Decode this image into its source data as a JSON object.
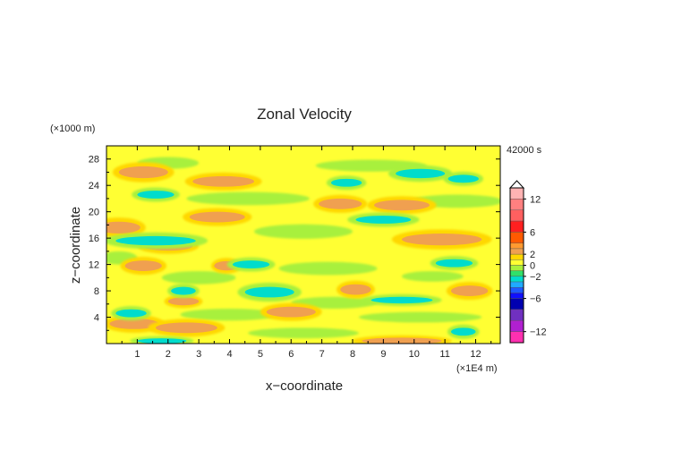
{
  "chart_data": {
    "type": "heatmap",
    "title": "Zonal Velocity",
    "xlabel": "x−coordinate",
    "ylabel": "z−coordinate",
    "x_unit": "(×1E4 m)",
    "y_unit": "(×1000 m)",
    "time_label": "42000 s",
    "xlim": [
      0,
      12.8
    ],
    "ylim": [
      0,
      30
    ],
    "x_ticks": [
      "1",
      "2",
      "3",
      "4",
      "5",
      "6",
      "7",
      "8",
      "9",
      "10",
      "11",
      "12"
    ],
    "y_ticks": [
      "4",
      "8",
      "12",
      "16",
      "20",
      "24",
      "28"
    ],
    "colorbar": {
      "tick_labels": [
        "12",
        "6",
        "2",
        "0",
        "−2",
        "−6",
        "−12"
      ],
      "tick_values": [
        12,
        6,
        2,
        0,
        -2,
        -6,
        -12
      ],
      "overflow_triangle": "top",
      "levels": [
        {
          "min": 12,
          "max": 14,
          "color": "#ffb3b3"
        },
        {
          "min": 10,
          "max": 12,
          "color": "#ff8080"
        },
        {
          "min": 8,
          "max": 10,
          "color": "#ff6060"
        },
        {
          "min": 6,
          "max": 8,
          "color": "#ff2020"
        },
        {
          "min": 4,
          "max": 6,
          "color": "#ff5a00"
        },
        {
          "min": 3,
          "max": 4,
          "color": "#ff9a30"
        },
        {
          "min": 2,
          "max": 3,
          "color": "#f0a050"
        },
        {
          "min": 1,
          "max": 2,
          "color": "#ffd700"
        },
        {
          "min": 0,
          "max": 1,
          "color": "#ffff33"
        },
        {
          "min": -1,
          "max": 0,
          "color": "#a8f03c"
        },
        {
          "min": -2,
          "max": -1,
          "color": "#30e06a"
        },
        {
          "min": -3,
          "max": -2,
          "color": "#00dccc"
        },
        {
          "min": -4,
          "max": -3,
          "color": "#1faaff"
        },
        {
          "min": -5,
          "max": -4,
          "color": "#1e5aff"
        },
        {
          "min": -6,
          "max": -5,
          "color": "#1010ff"
        },
        {
          "min": -8,
          "max": -6,
          "color": "#0000b0"
        },
        {
          "min": -10,
          "max": -8,
          "color": "#7030c0"
        },
        {
          "min": -12,
          "max": -10,
          "color": "#b020d0"
        },
        {
          "min": -14,
          "max": -12,
          "color": "#ff30b0"
        }
      ]
    },
    "background_level": {
      "value": 0.5,
      "color": "#ffff33"
    },
    "features": [
      {
        "kind": "positive",
        "x": 1.2,
        "z": 26.0,
        "hw": 0.8,
        "hh": 0.9,
        "u": 2.5
      },
      {
        "kind": "positive",
        "x": 3.8,
        "z": 24.6,
        "hw": 1.0,
        "hh": 0.8,
        "u": 2.5
      },
      {
        "kind": "positive",
        "x": 7.6,
        "z": 21.2,
        "hw": 0.7,
        "hh": 0.8,
        "u": 2.5
      },
      {
        "kind": "positive",
        "x": 9.6,
        "z": 21.0,
        "hw": 0.9,
        "hh": 0.8,
        "u": 2.5
      },
      {
        "kind": "positive",
        "x": 3.6,
        "z": 19.2,
        "hw": 0.9,
        "hh": 0.8,
        "u": 2.5
      },
      {
        "kind": "positive",
        "x": 0.4,
        "z": 17.6,
        "hw": 0.7,
        "hh": 0.9,
        "u": 2.5
      },
      {
        "kind": "positive",
        "x": 10.9,
        "z": 15.8,
        "hw": 1.3,
        "hh": 0.9,
        "u": 2.5
      },
      {
        "kind": "positive",
        "x": 2.0,
        "z": 14.8,
        "hw": 0.8,
        "hh": 0.7,
        "u": 2.5
      },
      {
        "kind": "positive",
        "x": 1.2,
        "z": 11.8,
        "hw": 0.6,
        "hh": 0.8,
        "u": 2.5
      },
      {
        "kind": "positive",
        "x": 3.9,
        "z": 11.8,
        "hw": 0.4,
        "hh": 0.7,
        "u": 2.5
      },
      {
        "kind": "positive",
        "x": 8.1,
        "z": 8.2,
        "hw": 0.5,
        "hh": 0.8,
        "u": 2.5
      },
      {
        "kind": "positive",
        "x": 11.8,
        "z": 8.0,
        "hw": 0.6,
        "hh": 0.8,
        "u": 2.5
      },
      {
        "kind": "positive",
        "x": 2.5,
        "z": 6.4,
        "hw": 0.5,
        "hh": 0.6,
        "u": 2.5
      },
      {
        "kind": "positive",
        "x": 6.0,
        "z": 4.8,
        "hw": 0.8,
        "hh": 0.8,
        "u": 2.5
      },
      {
        "kind": "positive",
        "x": 0.9,
        "z": 3.0,
        "hw": 0.8,
        "hh": 0.8,
        "u": 2.5
      },
      {
        "kind": "positive",
        "x": 2.6,
        "z": 2.4,
        "hw": 1.0,
        "hh": 0.8,
        "u": 2.5
      },
      {
        "kind": "positive",
        "x": 9.6,
        "z": 0.4,
        "hw": 1.3,
        "hh": 0.5,
        "u": 2.5
      },
      {
        "kind": "negative",
        "x": 10.2,
        "z": 25.8,
        "hw": 0.8,
        "hh": 0.7,
        "u": -2.5
      },
      {
        "kind": "negative",
        "x": 11.6,
        "z": 25.0,
        "hw": 0.5,
        "hh": 0.6,
        "u": -2.5
      },
      {
        "kind": "negative",
        "x": 7.8,
        "z": 24.4,
        "hw": 0.5,
        "hh": 0.6,
        "u": -3.0
      },
      {
        "kind": "negative",
        "x": 1.6,
        "z": 22.6,
        "hw": 0.6,
        "hh": 0.6,
        "u": -2.5
      },
      {
        "kind": "negative",
        "x": 9.0,
        "z": 18.8,
        "hw": 0.9,
        "hh": 0.6,
        "u": -3.0
      },
      {
        "kind": "negative",
        "x": 1.6,
        "z": 15.6,
        "hw": 1.3,
        "hh": 0.7,
        "u": -2.5
      },
      {
        "kind": "negative",
        "x": 4.7,
        "z": 12.0,
        "hw": 0.6,
        "hh": 0.6,
        "u": -2.5
      },
      {
        "kind": "negative",
        "x": 11.3,
        "z": 12.2,
        "hw": 0.6,
        "hh": 0.6,
        "u": -2.5
      },
      {
        "kind": "negative",
        "x": 2.5,
        "z": 8.0,
        "hw": 0.4,
        "hh": 0.6,
        "u": -3.0
      },
      {
        "kind": "negative",
        "x": 5.3,
        "z": 7.8,
        "hw": 0.8,
        "hh": 0.8,
        "u": -2.5
      },
      {
        "kind": "negative",
        "x": 9.6,
        "z": 6.6,
        "hw": 1.0,
        "hh": 0.5,
        "u": -2.5
      },
      {
        "kind": "negative",
        "x": 0.8,
        "z": 4.6,
        "hw": 0.5,
        "hh": 0.6,
        "u": -2.5
      },
      {
        "kind": "negative",
        "x": 11.6,
        "z": 1.8,
        "hw": 0.4,
        "hh": 0.6,
        "u": -2.5
      },
      {
        "kind": "negative",
        "x": 1.8,
        "z": 0.4,
        "hw": 0.8,
        "hh": 0.4,
        "u": -2.5
      },
      {
        "kind": "weak_negative",
        "x": 2.0,
        "z": 27.4,
        "hw": 1.0,
        "hh": 0.9,
        "u": -0.5
      },
      {
        "kind": "weak_negative",
        "x": 8.6,
        "z": 27.0,
        "hw": 1.8,
        "hh": 0.9,
        "u": -0.5
      },
      {
        "kind": "weak_negative",
        "x": 4.6,
        "z": 22.0,
        "hw": 2.0,
        "hh": 1.0,
        "u": -0.5
      },
      {
        "kind": "weak_negative",
        "x": 11.4,
        "z": 21.6,
        "hw": 1.5,
        "hh": 1.0,
        "u": -0.5
      },
      {
        "kind": "weak_negative",
        "x": 6.4,
        "z": 17.0,
        "hw": 1.6,
        "hh": 1.1,
        "u": -0.5
      },
      {
        "kind": "weak_negative",
        "x": 0.4,
        "z": 13.0,
        "hw": 0.6,
        "hh": 1.0,
        "u": -0.5
      },
      {
        "kind": "weak_negative",
        "x": 7.2,
        "z": 11.4,
        "hw": 1.6,
        "hh": 1.0,
        "u": -0.5
      },
      {
        "kind": "weak_negative",
        "x": 10.6,
        "z": 10.2,
        "hw": 1.0,
        "hh": 0.8,
        "u": -0.5
      },
      {
        "kind": "weak_negative",
        "x": 3.0,
        "z": 10.0,
        "hw": 1.2,
        "hh": 1.0,
        "u": -0.5
      },
      {
        "kind": "weak_negative",
        "x": 7.4,
        "z": 6.2,
        "hw": 1.4,
        "hh": 0.9,
        "u": -0.5
      },
      {
        "kind": "weak_negative",
        "x": 4.0,
        "z": 4.4,
        "hw": 1.6,
        "hh": 0.9,
        "u": -0.5
      },
      {
        "kind": "weak_negative",
        "x": 10.2,
        "z": 4.0,
        "hw": 2.0,
        "hh": 0.8,
        "u": -0.5
      },
      {
        "kind": "weak_negative",
        "x": 6.4,
        "z": 1.6,
        "hw": 1.8,
        "hh": 0.8,
        "u": -0.5
      }
    ]
  }
}
